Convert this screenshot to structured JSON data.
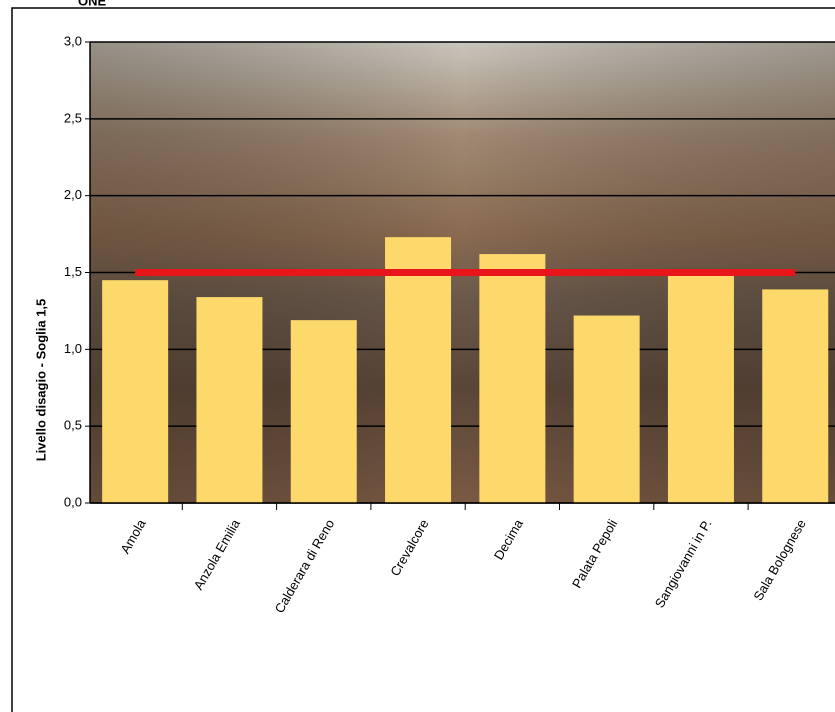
{
  "chart_data": {
    "type": "bar",
    "title": "ONE",
    "y_label": "Livello disagio - Soglia 1,5",
    "categories": [
      "Amola",
      "Anzola Emilia",
      "Calderara di Reno",
      "Crevalcore",
      "Decima",
      "Palata Pepoli",
      "Sangiovanni in P.",
      "Sala Bolognese"
    ],
    "values": [
      1.45,
      1.34,
      1.19,
      1.73,
      1.62,
      1.22,
      1.48,
      1.39
    ],
    "color": "#fcd96a",
    "threshold": 1.5,
    "threshold_color": "#e8161b",
    "ylim": [
      0,
      3
    ],
    "yticks": [
      {
        "value": 0,
        "label": "0,0"
      },
      {
        "value": 0.5,
        "label": "0,5"
      },
      {
        "value": 1,
        "label": "1,0"
      },
      {
        "value": 1.5,
        "label": "1,5"
      },
      {
        "value": 2,
        "label": "2,0"
      },
      {
        "value": 2.5,
        "label": "2,5"
      },
      {
        "value": 3,
        "label": "3,0"
      }
    ],
    "grid": true
  }
}
